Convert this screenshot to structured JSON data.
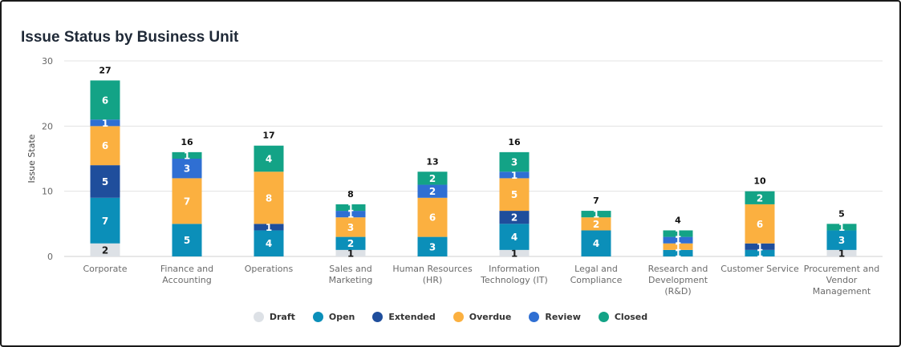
{
  "chart_data": {
    "type": "bar",
    "stacked": true,
    "title": "Issue Status by Business Unit",
    "ylabel": "Issue State",
    "xlabel": "",
    "ylim": [
      0,
      30
    ],
    "yticks": [
      0,
      10,
      20,
      30
    ],
    "grid": true,
    "legend_position": "bottom",
    "categories": [
      [
        "Corporate"
      ],
      [
        "Finance and",
        "Accounting"
      ],
      [
        "Operations"
      ],
      [
        "Sales and",
        "Marketing"
      ],
      [
        "Human Resources",
        "(HR)"
      ],
      [
        "Information",
        "Technology (IT)"
      ],
      [
        "Legal and",
        "Compliance"
      ],
      [
        "Research and",
        "Development",
        "(R&D)"
      ],
      [
        "Customer Service"
      ],
      [
        "Procurement and",
        "Vendor",
        "Management"
      ]
    ],
    "totals": [
      27,
      16,
      17,
      8,
      13,
      16,
      7,
      4,
      10,
      5
    ],
    "series": [
      {
        "name": "Draft",
        "color": "#dde1e6",
        "values": [
          2,
          0,
          0,
          1,
          0,
          1,
          0,
          0,
          0,
          1
        ]
      },
      {
        "name": "Open",
        "color": "#0b8fb9",
        "values": [
          7,
          5,
          4,
          2,
          3,
          4,
          4,
          1,
          1,
          3
        ]
      },
      {
        "name": "Extended",
        "color": "#1f4e9c",
        "values": [
          5,
          0,
          1,
          0,
          0,
          2,
          0,
          0,
          1,
          0
        ]
      },
      {
        "name": "Overdue",
        "color": "#fbb040",
        "values": [
          6,
          7,
          8,
          3,
          6,
          5,
          2,
          1,
          6,
          0
        ]
      },
      {
        "name": "Review",
        "color": "#2f6fd3",
        "values": [
          1,
          3,
          0,
          1,
          2,
          1,
          0,
          1,
          0,
          0
        ]
      },
      {
        "name": "Closed",
        "color": "#13a386",
        "values": [
          6,
          1,
          4,
          1,
          2,
          3,
          1,
          1,
          2,
          1
        ]
      }
    ]
  }
}
